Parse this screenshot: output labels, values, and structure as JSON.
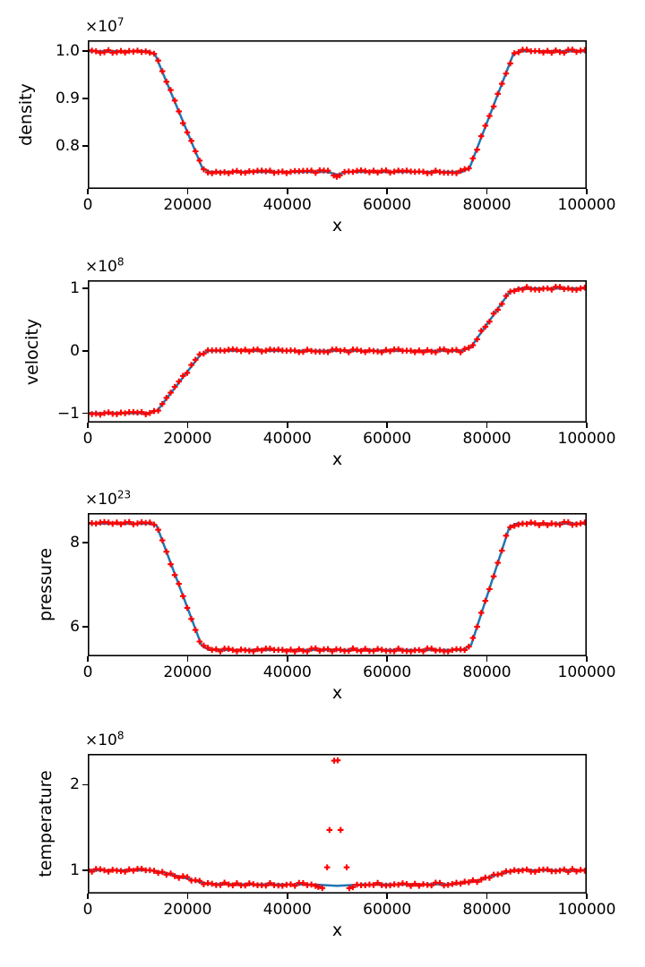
{
  "figure": {
    "background": "#ffffff"
  },
  "colors": {
    "line": "#1f77b4",
    "marker": "#ff0000",
    "axis": "#000000",
    "text": "#000000"
  },
  "chart_data": [
    {
      "type": "line",
      "ylabel": "density",
      "xlabel": "x",
      "offset": {
        "base": "×10",
        "exp": "7"
      },
      "xlim": [
        0,
        100000
      ],
      "ylim": [
        0.709,
        1.023
      ],
      "xticks": [
        {
          "v": 0,
          "label": "0"
        },
        {
          "v": 20000,
          "label": "20000"
        },
        {
          "v": 40000,
          "label": "40000"
        },
        {
          "v": 60000,
          "label": "60000"
        },
        {
          "v": 80000,
          "label": "80000"
        },
        {
          "v": 100000,
          "label": "100000"
        }
      ],
      "yticks": [
        {
          "v": 1.0,
          "label": "1.0"
        },
        {
          "v": 0.9,
          "label": "0.9"
        },
        {
          "v": 0.8,
          "label": "0.8"
        }
      ],
      "line": [
        [
          0,
          1.0
        ],
        [
          12000,
          1.0
        ],
        [
          13500,
          0.993
        ],
        [
          23000,
          0.752
        ],
        [
          24500,
          0.745
        ],
        [
          48000,
          0.745
        ],
        [
          50000,
          0.7395
        ],
        [
          52000,
          0.745
        ],
        [
          75000,
          0.745
        ],
        [
          76500,
          0.753
        ],
        [
          85200,
          0.992
        ],
        [
          86500,
          1.0
        ],
        [
          100000,
          1.0
        ]
      ],
      "marker_step": 830,
      "marker_jitter_px": 1.8,
      "marker_skip": [
        [
          48900,
          50900
        ]
      ],
      "extra_markers": [
        [
          49300,
          0.7375
        ],
        [
          49900,
          0.7345
        ],
        [
          50500,
          0.7375
        ]
      ]
    },
    {
      "type": "line",
      "ylabel": "velocity",
      "xlabel": "x",
      "offset": {
        "base": "×10",
        "exp": "8"
      },
      "xlim": [
        0,
        100000
      ],
      "ylim": [
        -1.15,
        1.13
      ],
      "xticks": [
        {
          "v": 0,
          "label": "0"
        },
        {
          "v": 20000,
          "label": "20000"
        },
        {
          "v": 40000,
          "label": "40000"
        },
        {
          "v": 60000,
          "label": "60000"
        },
        {
          "v": 80000,
          "label": "80000"
        },
        {
          "v": 100000,
          "label": "100000"
        }
      ],
      "yticks": [
        {
          "v": 1,
          "label": "1"
        },
        {
          "v": 0,
          "label": "0"
        },
        {
          "v": -1,
          "label": "−1"
        }
      ],
      "line": [
        [
          0,
          -1.0
        ],
        [
          12200,
          -1.0
        ],
        [
          14000,
          -0.95
        ],
        [
          22500,
          -0.07
        ],
        [
          24200,
          0.0
        ],
        [
          75000,
          0.0
        ],
        [
          76800,
          0.06
        ],
        [
          84500,
          0.94
        ],
        [
          86300,
          1.0
        ],
        [
          100000,
          1.0
        ]
      ],
      "marker_step": 830,
      "marker_jitter_px": 1.8,
      "marker_skip": [],
      "extra_markers": []
    },
    {
      "type": "line",
      "ylabel": "pressure",
      "xlabel": "x",
      "offset": {
        "base": "×10",
        "exp": "23"
      },
      "xlim": [
        0,
        100000
      ],
      "ylim": [
        5.3,
        8.7
      ],
      "xticks": [
        {
          "v": 0,
          "label": "0"
        },
        {
          "v": 20000,
          "label": "20000"
        },
        {
          "v": 40000,
          "label": "40000"
        },
        {
          "v": 60000,
          "label": "60000"
        },
        {
          "v": 80000,
          "label": "80000"
        },
        {
          "v": 100000,
          "label": "100000"
        }
      ],
      "yticks": [
        {
          "v": 8,
          "label": "8"
        },
        {
          "v": 6,
          "label": "6"
        }
      ],
      "line": [
        [
          0,
          8.45
        ],
        [
          12300,
          8.45
        ],
        [
          13800,
          8.4
        ],
        [
          22800,
          5.56
        ],
        [
          24300,
          5.45
        ],
        [
          75000,
          5.45
        ],
        [
          76800,
          5.56
        ],
        [
          84500,
          8.37
        ],
        [
          86000,
          8.45
        ],
        [
          100000,
          8.45
        ]
      ],
      "marker_step": 830,
      "marker_jitter_px": 1.8,
      "marker_skip": [],
      "extra_markers": []
    },
    {
      "type": "line",
      "ylabel": "temperature",
      "xlabel": "x",
      "offset": {
        "base": "×10",
        "exp": "8"
      },
      "xlim": [
        0,
        100000
      ],
      "ylim": [
        0.728,
        2.36
      ],
      "xticks": [
        {
          "v": 0,
          "label": "0"
        },
        {
          "v": 20000,
          "label": "20000"
        },
        {
          "v": 40000,
          "label": "40000"
        },
        {
          "v": 60000,
          "label": "60000"
        },
        {
          "v": 80000,
          "label": "80000"
        },
        {
          "v": 100000,
          "label": "100000"
        }
      ],
      "yticks": [
        {
          "v": 2,
          "label": "2"
        },
        {
          "v": 1,
          "label": "1"
        }
      ],
      "line": [
        [
          0,
          1.0
        ],
        [
          12500,
          1.0
        ],
        [
          15500,
          0.972
        ],
        [
          21500,
          0.878
        ],
        [
          24200,
          0.84
        ],
        [
          30000,
          0.836
        ],
        [
          45000,
          0.834
        ],
        [
          48000,
          0.825
        ],
        [
          50000,
          0.818
        ],
        [
          52000,
          0.825
        ],
        [
          55000,
          0.834
        ],
        [
          73500,
          0.838
        ],
        [
          77500,
          0.872
        ],
        [
          83500,
          0.972
        ],
        [
          86200,
          1.006
        ],
        [
          89000,
          1.0
        ],
        [
          100000,
          1.0
        ]
      ],
      "marker_step": 830,
      "marker_jitter_px": 1.8,
      "marker_skip": [
        [
          45900,
          53400
        ]
      ],
      "extra_markers": [
        [
          46200,
          0.805
        ],
        [
          47000,
          0.793
        ],
        [
          47980,
          1.035
        ],
        [
          48430,
          1.472
        ],
        [
          49370,
          2.28
        ],
        [
          50090,
          2.285
        ],
        [
          50660,
          1.472
        ],
        [
          51890,
          1.035
        ],
        [
          52400,
          0.792
        ],
        [
          53100,
          0.803
        ]
      ]
    }
  ]
}
